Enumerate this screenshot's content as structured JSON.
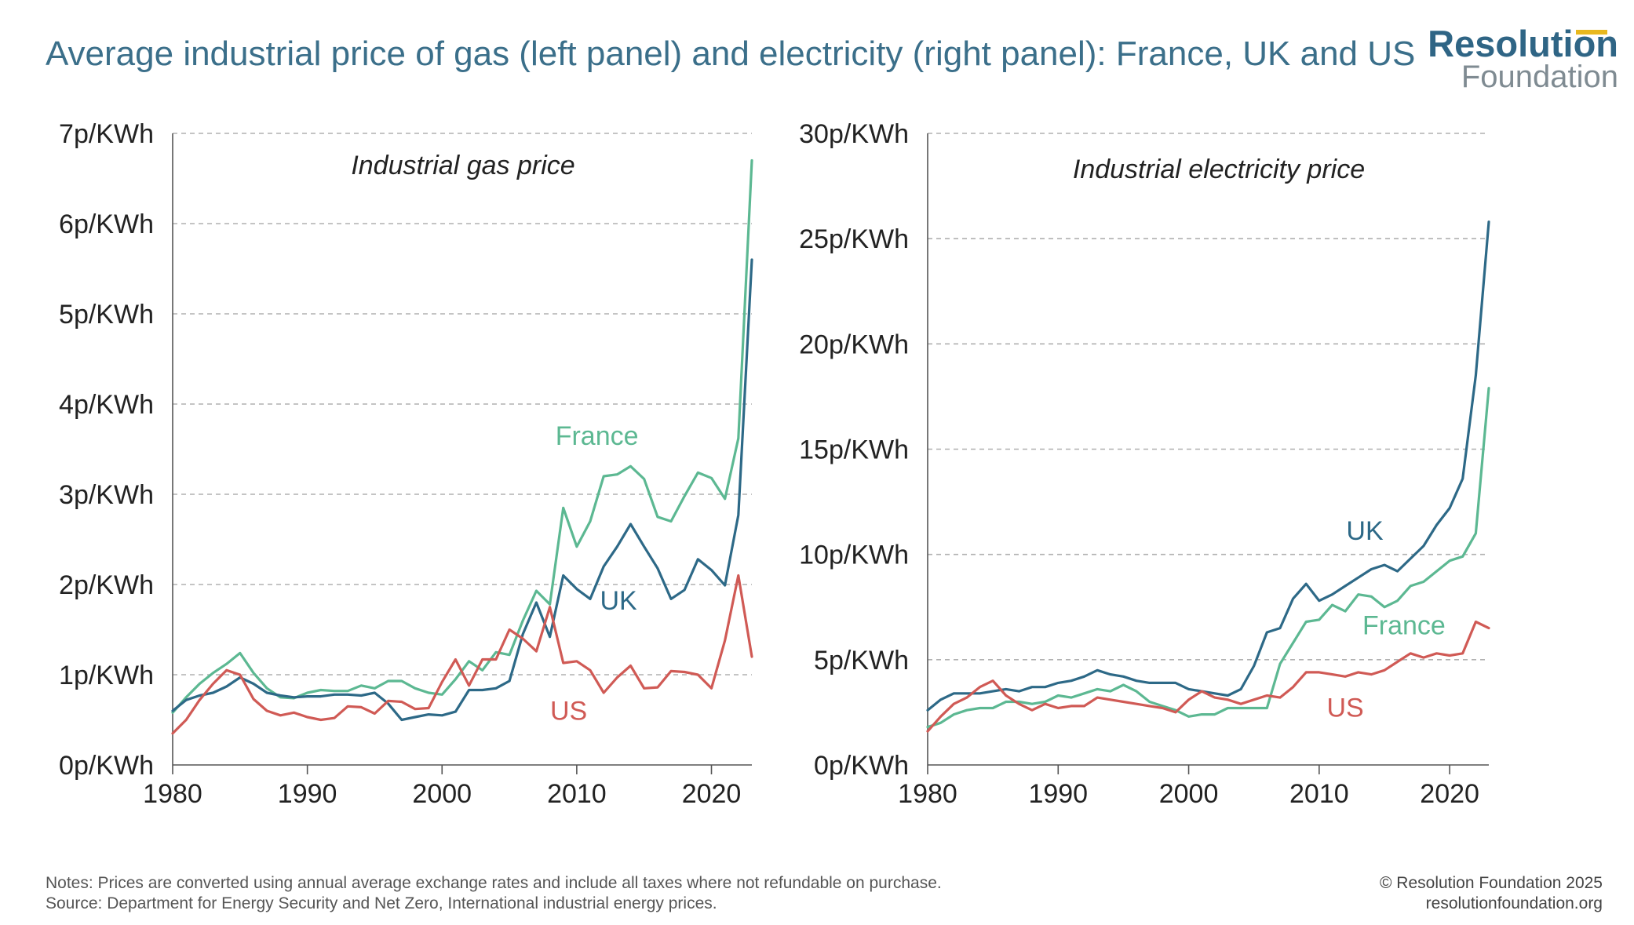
{
  "title": "Average industrial price of gas (left panel) and electricity (right panel): France, UK and US",
  "logo": {
    "line1": "Resolution",
    "line2": "Foundation"
  },
  "notes": {
    "line1": "Notes: Prices are converted using annual average exchange rates and include all taxes where not refundable on purchase.",
    "line2": "Source: Department for Energy Security and Net Zero, International industrial energy prices."
  },
  "credit": {
    "line1": "© Resolution Foundation 2025",
    "line2": "resolutionfoundation.org"
  },
  "colors": {
    "France": "#5cb892",
    "UK": "#2d6987",
    "US": "#d05a55",
    "grid": "#b0b0b0"
  },
  "chart_data": [
    {
      "type": "line",
      "panel_title": "Industrial gas price",
      "xlim": [
        1980,
        2023
      ],
      "x_ticks": [
        1980,
        1990,
        2000,
        2010,
        2020
      ],
      "ylim": [
        0,
        7
      ],
      "y_ticks": [
        0,
        1,
        2,
        3,
        4,
        5,
        6,
        7
      ],
      "y_tick_labels": [
        "0p/KWh",
        "1p/KWh",
        "2p/KWh",
        "3p/KWh",
        "4p/KWh",
        "5p/KWh",
        "6p/KWh",
        "7p/KWh"
      ],
      "grid": "horizontal dashed",
      "x": [
        1980,
        1981,
        1982,
        1983,
        1984,
        1985,
        1986,
        1987,
        1988,
        1989,
        1990,
        1991,
        1992,
        1993,
        1994,
        1995,
        1996,
        1997,
        1998,
        1999,
        2000,
        2001,
        2002,
        2003,
        2004,
        2005,
        2006,
        2007,
        2008,
        2009,
        2010,
        2011,
        2012,
        2013,
        2014,
        2015,
        2016,
        2017,
        2018,
        2019,
        2020,
        2021,
        2022,
        2023
      ],
      "series": [
        {
          "name": "France",
          "values": [
            0.58,
            0.75,
            0.9,
            1.02,
            1.12,
            1.24,
            1.02,
            0.85,
            0.75,
            0.74,
            0.8,
            0.83,
            0.82,
            0.82,
            0.88,
            0.85,
            0.93,
            0.93,
            0.85,
            0.8,
            0.78,
            0.95,
            1.15,
            1.05,
            1.25,
            1.22,
            1.6,
            1.93,
            1.78,
            2.85,
            2.42,
            2.7,
            3.2,
            3.22,
            3.31,
            3.17,
            2.75,
            2.7,
            2.98,
            3.24,
            3.18,
            2.95,
            3.62,
            6.7
          ]
        },
        {
          "name": "UK",
          "values": [
            0.6,
            0.72,
            0.77,
            0.8,
            0.87,
            0.97,
            0.9,
            0.8,
            0.77,
            0.75,
            0.76,
            0.76,
            0.78,
            0.78,
            0.77,
            0.8,
            0.68,
            0.5,
            0.53,
            0.56,
            0.55,
            0.59,
            0.83,
            0.83,
            0.85,
            0.93,
            1.45,
            1.8,
            1.42,
            2.1,
            1.95,
            1.84,
            2.2,
            2.42,
            2.67,
            2.42,
            2.18,
            1.84,
            1.94,
            2.28,
            2.16,
            1.99,
            2.77,
            5.6
          ]
        },
        {
          "name": "US",
          "values": [
            0.35,
            0.5,
            0.72,
            0.9,
            1.05,
            1.0,
            0.73,
            0.6,
            0.55,
            0.58,
            0.53,
            0.5,
            0.52,
            0.65,
            0.64,
            0.57,
            0.71,
            0.7,
            0.62,
            0.63,
            0.92,
            1.17,
            0.88,
            1.17,
            1.17,
            1.5,
            1.4,
            1.26,
            1.75,
            1.13,
            1.15,
            1.05,
            0.8,
            0.97,
            1.1,
            0.85,
            0.86,
            1.04,
            1.03,
            1.0,
            0.85,
            1.38,
            2.1,
            1.2
          ]
        }
      ],
      "series_labels": [
        {
          "name": "France",
          "text": "France",
          "x": 2011.5,
          "y": 3.55
        },
        {
          "name": "UK",
          "text": "UK",
          "x": 2013.1,
          "y": 1.72
        },
        {
          "name": "US",
          "text": "US",
          "x": 2009.4,
          "y": 0.5
        }
      ]
    },
    {
      "type": "line",
      "panel_title": "Industrial electricity price",
      "xlim": [
        1980,
        2023
      ],
      "x_ticks": [
        1980,
        1990,
        2000,
        2010,
        2020
      ],
      "ylim": [
        0,
        30
      ],
      "y_ticks": [
        0,
        5,
        10,
        15,
        20,
        25,
        30
      ],
      "y_tick_labels": [
        "0p/KWh",
        "5p/KWh",
        "10p/KWh",
        "15p/KWh",
        "20p/KWh",
        "25p/KWh",
        "30p/KWh"
      ],
      "grid": "horizontal dashed",
      "x": [
        1980,
        1981,
        1982,
        1983,
        1984,
        1985,
        1986,
        1987,
        1988,
        1989,
        1990,
        1991,
        1992,
        1993,
        1994,
        1995,
        1996,
        1997,
        1998,
        1999,
        2000,
        2001,
        2002,
        2003,
        2004,
        2005,
        2006,
        2007,
        2008,
        2009,
        2010,
        2011,
        2012,
        2013,
        2014,
        2015,
        2016,
        2017,
        2018,
        2019,
        2020,
        2021,
        2022,
        2023
      ],
      "series": [
        {
          "name": "France",
          "values": [
            1.8,
            2.0,
            2.4,
            2.6,
            2.7,
            2.7,
            3.0,
            3.0,
            2.9,
            3.0,
            3.3,
            3.2,
            3.4,
            3.6,
            3.5,
            3.8,
            3.5,
            3.0,
            2.8,
            2.6,
            2.3,
            2.4,
            2.4,
            2.7,
            2.7,
            2.7,
            2.7,
            4.8,
            5.8,
            6.8,
            6.9,
            7.6,
            7.3,
            8.1,
            8.0,
            7.5,
            7.8,
            8.5,
            8.7,
            9.2,
            9.7,
            9.9,
            11.0,
            17.9
          ]
        },
        {
          "name": "UK",
          "values": [
            2.6,
            3.1,
            3.4,
            3.4,
            3.4,
            3.5,
            3.6,
            3.5,
            3.7,
            3.7,
            3.9,
            4.0,
            4.2,
            4.5,
            4.3,
            4.2,
            4.0,
            3.9,
            3.9,
            3.9,
            3.6,
            3.5,
            3.4,
            3.3,
            3.6,
            4.7,
            6.3,
            6.5,
            7.9,
            8.6,
            7.8,
            8.1,
            8.5,
            8.9,
            9.3,
            9.5,
            9.2,
            9.8,
            10.4,
            11.4,
            12.2,
            13.6,
            18.5,
            25.8
          ]
        },
        {
          "name": "US",
          "values": [
            1.6,
            2.3,
            2.9,
            3.2,
            3.7,
            4.0,
            3.3,
            2.9,
            2.6,
            2.9,
            2.7,
            2.8,
            2.8,
            3.2,
            3.1,
            3.0,
            2.9,
            2.8,
            2.7,
            2.5,
            3.1,
            3.5,
            3.2,
            3.1,
            2.9,
            3.1,
            3.3,
            3.2,
            3.7,
            4.4,
            4.4,
            4.3,
            4.2,
            4.4,
            4.3,
            4.5,
            4.9,
            5.3,
            5.1,
            5.3,
            5.2,
            5.3,
            6.8,
            6.5
          ]
        }
      ],
      "series_labels": [
        {
          "name": "UK",
          "text": "UK",
          "x": 2013.5,
          "y": 10.7
        },
        {
          "name": "France",
          "text": "France",
          "x": 2016.5,
          "y": 6.2
        },
        {
          "name": "US",
          "text": "US",
          "x": 2012.0,
          "y": 2.3
        }
      ]
    }
  ]
}
